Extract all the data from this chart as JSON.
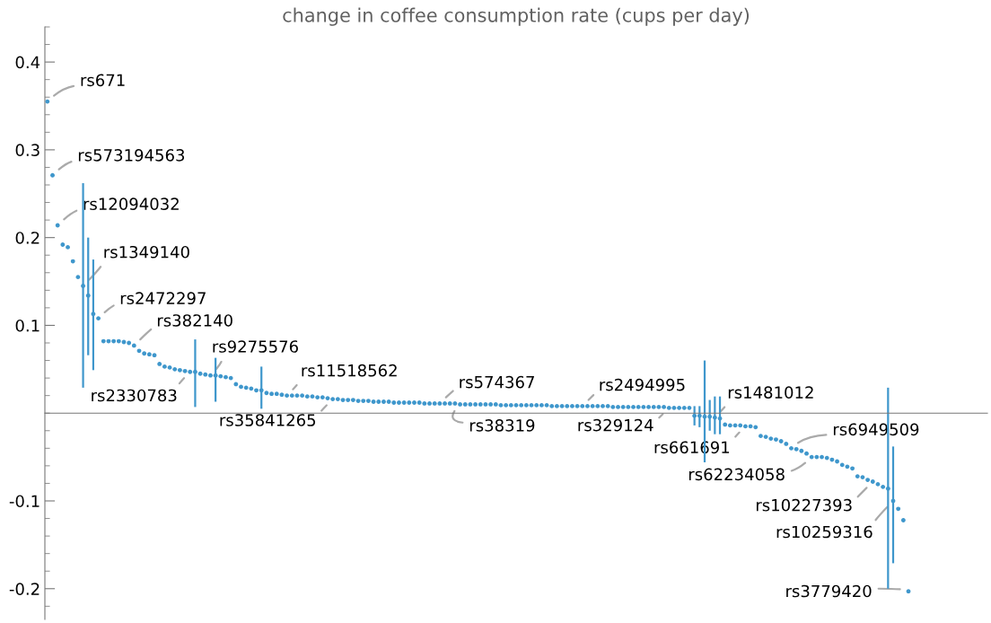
{
  "chart_data": {
    "type": "scatter",
    "title": "change in coffee consumption rate (cups per day)",
    "categories": [
      null,
      null,
      null,
      null,
      null,
      null,
      null,
      null,
      null,
      null,
      null,
      null,
      null,
      null,
      null,
      null,
      null,
      null,
      null,
      null,
      null,
      null,
      null,
      null,
      null,
      null,
      null,
      null,
      null,
      null,
      null,
      null,
      null,
      null,
      null,
      null,
      null,
      null,
      null,
      null,
      null,
      null,
      null,
      null,
      null,
      null,
      null,
      null,
      null,
      null,
      null,
      null,
      null,
      null,
      null,
      null,
      null,
      null,
      null,
      null,
      null,
      null,
      null,
      null,
      null,
      null,
      null,
      null,
      null,
      null,
      null,
      null,
      null,
      null,
      null,
      null,
      null,
      null,
      null,
      null,
      null,
      null,
      null,
      null,
      null,
      null,
      null,
      null,
      null,
      null,
      null,
      null,
      null,
      null,
      null,
      null,
      null,
      null,
      null,
      null,
      null,
      null,
      null,
      null,
      null,
      null,
      null,
      null,
      null,
      null,
      null,
      null,
      null,
      null,
      null,
      null,
      null,
      null,
      null,
      null,
      null,
      null,
      null,
      null,
      null,
      null,
      null,
      null,
      null,
      null,
      null,
      null,
      null,
      null,
      null,
      null,
      null,
      null,
      null,
      null,
      null,
      null,
      null,
      null,
      null,
      null,
      null,
      null,
      null,
      null,
      null,
      null,
      null,
      null,
      null,
      null,
      null,
      null,
      null,
      null,
      null,
      null,
      null,
      null,
      null,
      null,
      null,
      null,
      null,
      null,
      null,
      null,
      null,
      null,
      null,
      null,
      null,
      null,
      null,
      null,
      null,
      null,
      null,
      null,
      null
    ],
    "series": [
      {
        "color": "#3f97cc",
        "values": [
          0.355,
          0.271,
          0.214,
          0.192,
          0.189,
          0.173,
          0.155,
          0.145,
          0.134,
          0.113,
          0.108,
          0.082,
          0.082,
          0.082,
          0.082,
          0.081,
          0.08,
          0.077,
          0.071,
          0.068,
          0.067,
          0.066,
          0.056,
          0.053,
          0.052,
          0.05,
          0.049,
          0.048,
          0.047,
          0.047,
          0.045,
          0.044,
          0.043,
          0.043,
          0.042,
          0.041,
          0.04,
          0.033,
          0.03,
          0.029,
          0.028,
          0.026,
          0.026,
          0.023,
          0.022,
          0.022,
          0.021,
          0.02,
          0.02,
          0.02,
          0.02,
          0.019,
          0.019,
          0.018,
          0.018,
          0.017,
          0.016,
          0.016,
          0.015,
          0.015,
          0.015,
          0.014,
          0.014,
          0.014,
          0.013,
          0.013,
          0.013,
          0.013,
          0.012,
          0.012,
          0.012,
          0.012,
          0.012,
          0.012,
          0.011,
          0.011,
          0.011,
          0.011,
          0.011,
          0.011,
          0.011,
          0.01,
          0.01,
          0.01,
          0.01,
          0.01,
          0.01,
          0.01,
          0.01,
          0.009,
          0.009,
          0.009,
          0.009,
          0.009,
          0.009,
          0.009,
          0.009,
          0.009,
          0.009,
          0.008,
          0.008,
          0.008,
          0.008,
          0.008,
          0.008,
          0.008,
          0.008,
          0.008,
          0.008,
          0.008,
          0.008,
          0.007,
          0.007,
          0.007,
          0.007,
          0.007,
          0.007,
          0.007,
          0.007,
          0.007,
          0.007,
          0.007,
          0.006,
          0.006,
          0.006,
          0.006,
          0.006,
          -0.003,
          -0.003,
          -0.004,
          -0.004,
          -0.005,
          -0.006,
          -0.013,
          -0.014,
          -0.014,
          -0.014,
          -0.015,
          -0.015,
          -0.016,
          -0.026,
          -0.027,
          -0.029,
          -0.03,
          -0.032,
          -0.035,
          -0.04,
          -0.041,
          -0.043,
          -0.046,
          -0.05,
          -0.05,
          -0.05,
          -0.051,
          -0.053,
          -0.055,
          -0.059,
          -0.061,
          -0.063,
          -0.072,
          -0.073,
          -0.076,
          -0.078,
          -0.081,
          -0.084,
          -0.086,
          -0.1,
          -0.109,
          -0.122,
          -0.203,
          null,
          null,
          null,
          null,
          null,
          null,
          null,
          null,
          null,
          null,
          null,
          null,
          null,
          null,
          null
        ],
        "errors": [
          null,
          null,
          null,
          null,
          null,
          null,
          null,
          [
            0.029,
            0.262
          ],
          [
            0.066,
            0.2
          ],
          [
            0.049,
            0.175
          ],
          null,
          null,
          null,
          null,
          null,
          null,
          null,
          null,
          null,
          null,
          null,
          null,
          null,
          null,
          null,
          null,
          null,
          null,
          null,
          [
            0.007,
            0.084
          ],
          null,
          null,
          null,
          [
            0.013,
            0.063
          ],
          null,
          null,
          null,
          null,
          null,
          null,
          null,
          null,
          [
            0.005,
            0.053
          ],
          null,
          null,
          null,
          null,
          null,
          null,
          null,
          null,
          null,
          null,
          null,
          null,
          null,
          null,
          null,
          null,
          null,
          null,
          null,
          null,
          null,
          null,
          null,
          null,
          null,
          null,
          null,
          null,
          null,
          null,
          null,
          null,
          null,
          null,
          null,
          null,
          null,
          null,
          null,
          null,
          null,
          null,
          null,
          null,
          null,
          null,
          null,
          null,
          null,
          null,
          null,
          null,
          null,
          null,
          null,
          null,
          null,
          null,
          null,
          null,
          null,
          null,
          null,
          null,
          null,
          null,
          null,
          null,
          null,
          null,
          null,
          null,
          null,
          null,
          null,
          null,
          null,
          null,
          null,
          null,
          null,
          null,
          null,
          null,
          [
            -0.014,
            0.008
          ],
          [
            -0.016,
            0.008
          ],
          [
            -0.056,
            0.06
          ],
          [
            -0.02,
            0.015
          ],
          [
            -0.024,
            0.019
          ],
          [
            -0.024,
            0.019
          ],
          null,
          null,
          null,
          null,
          null,
          null,
          null,
          null,
          null,
          null,
          null,
          null,
          null,
          null,
          null,
          null,
          null,
          null,
          null,
          null,
          null,
          null,
          null,
          null,
          null,
          null,
          null,
          null,
          null,
          null,
          null,
          null,
          [
            -0.2,
            0.029
          ],
          [
            -0.171,
            -0.038
          ],
          null,
          null,
          null,
          null,
          null,
          null,
          null,
          null,
          null,
          null,
          null,
          null,
          null,
          null,
          null,
          null,
          null,
          null
        ]
      }
    ],
    "marker": "circle",
    "ylim": [
      -0.235,
      0.44
    ],
    "yticks": [
      -0.2,
      -0.1,
      0.1,
      0.2,
      0.3,
      0.4
    ],
    "tick_labels": "y",
    "legend": false,
    "grid": false,
    "annotations": [
      "rs671",
      "rs573194563",
      "rs12094032",
      "rs1349140",
      "rs2472297",
      "rs382140",
      "rs2330783",
      "rs9275576",
      "rs35841265",
      "rs11518562",
      "rs38319",
      "rs574367",
      "rs329124",
      "rs2494995",
      "rs1481012",
      "rs661691",
      "rs62234058",
      "rs6949509",
      "rs10227393",
      "rs10259316",
      "rs3779420"
    ]
  }
}
